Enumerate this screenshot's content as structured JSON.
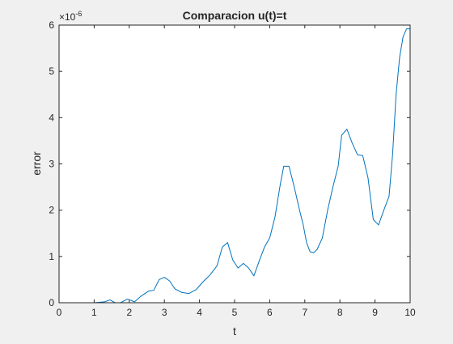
{
  "chart_data": {
    "type": "line",
    "title": "Comparacion u(t)=t",
    "xlabel": "t",
    "ylabel": "error",
    "exponent_label": "×10",
    "exponent_power": "-6",
    "xlim": [
      0,
      10
    ],
    "ylim": [
      0,
      6
    ],
    "xticks": [
      "0",
      "1",
      "2",
      "3",
      "4",
      "5",
      "6",
      "7",
      "8",
      "9",
      "10"
    ],
    "yticks": [
      "0",
      "1",
      "2",
      "3",
      "4",
      "5",
      "6"
    ],
    "grid": false,
    "line_color": "#0072bd",
    "series": [
      {
        "x": [
          0,
          1.0,
          1.3,
          1.45,
          1.6,
          1.75,
          1.95,
          2.15,
          2.35,
          2.55,
          2.7,
          2.85,
          3.0,
          3.15,
          3.3,
          3.5,
          3.7,
          3.9,
          4.1,
          4.3,
          4.5,
          4.65,
          4.8,
          4.95,
          5.1,
          5.25,
          5.4,
          5.55,
          5.7,
          5.85,
          6.0,
          6.15,
          6.3,
          6.4,
          6.55,
          6.7,
          6.85,
          6.95,
          7.05,
          7.15,
          7.25,
          7.35,
          7.5,
          7.65,
          7.8,
          7.95,
          8.05,
          8.2,
          8.35,
          8.5,
          8.65,
          8.8,
          8.95,
          9.1,
          9.25,
          9.4,
          9.5,
          9.6,
          9.7,
          9.8,
          9.9,
          10.0
        ],
        "y": [
          0,
          0,
          0.02,
          0.06,
          0.0,
          0.0,
          0.08,
          0.02,
          0.15,
          0.25,
          0.27,
          0.5,
          0.55,
          0.47,
          0.3,
          0.22,
          0.2,
          0.28,
          0.45,
          0.6,
          0.8,
          1.2,
          1.3,
          0.92,
          0.75,
          0.85,
          0.75,
          0.58,
          0.9,
          1.2,
          1.4,
          1.85,
          2.55,
          2.95,
          2.95,
          2.5,
          2.0,
          1.7,
          1.3,
          1.1,
          1.08,
          1.15,
          1.4,
          2.0,
          2.5,
          2.95,
          3.62,
          3.75,
          3.45,
          3.2,
          3.18,
          2.7,
          1.8,
          1.68,
          2.0,
          2.3,
          3.2,
          4.5,
          5.3,
          5.75,
          5.92,
          5.92
        ]
      }
    ]
  }
}
